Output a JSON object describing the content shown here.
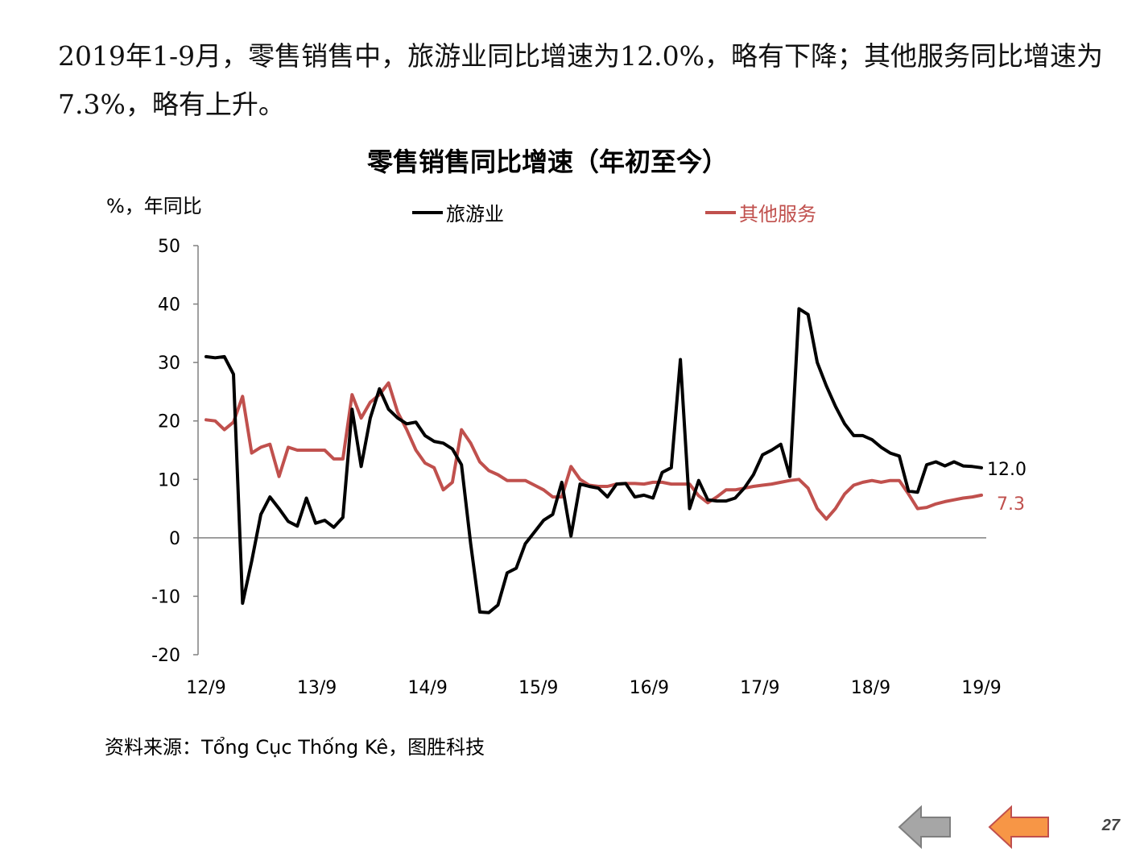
{
  "headline": "2019年1-9月，零售销售中，旅游业同比增速为12.0%，略有下降；其他服务同比增速为7.3%，略有上升。",
  "source": "资料来源：Tổng Cục Thống Kê，图胜科技",
  "page_number": "27",
  "nav": {
    "prev_icon": "gray-left-arrow-icon",
    "next_icon": "orange-left-arrow-icon"
  },
  "colors": {
    "tourism": "#000000",
    "other": "#c0504d",
    "axis": "#808080",
    "prev": "#a6a6a6",
    "next": "#f79646"
  },
  "chart_data": {
    "type": "line",
    "title": "零售销售同比增速（年初至今）",
    "ylabel": "%，年同比",
    "ylim": [
      -20,
      50
    ],
    "yticks": [
      50,
      40,
      30,
      20,
      10,
      0,
      -10,
      -20
    ],
    "xticks": [
      "12/9",
      "13/9",
      "14/9",
      "15/9",
      "16/9",
      "17/9",
      "18/9",
      "19/9"
    ],
    "x_start": "12/9",
    "x_end": "19/9",
    "legend_position": "top",
    "series": [
      {
        "name": "旅游业",
        "end_label": "12.0",
        "values": [
          31,
          30.8,
          31,
          28,
          -11.2,
          -4,
          4,
          7,
          5,
          2.8,
          2,
          6.8,
          2.5,
          3,
          1.8,
          3.5,
          22,
          12.2,
          20.5,
          25.5,
          22,
          20.5,
          19.5,
          19.8,
          17.5,
          16.5,
          16.2,
          15.2,
          12.5,
          -1,
          -12.7,
          -12.8,
          -11.5,
          -6,
          -5.2,
          -1,
          1,
          3,
          4,
          9.5,
          0.3,
          9.2,
          8.8,
          8.5,
          7,
          9.2,
          9.3,
          7,
          7.3,
          6.8,
          11.2,
          12,
          30.5,
          5,
          9.8,
          6.5,
          6.3,
          6.3,
          6.8,
          8.5,
          10.8,
          14.2,
          15,
          16,
          10.5,
          39.2,
          38.2,
          30,
          26,
          22.5,
          19.5,
          17.5,
          17.5,
          16.8,
          15.5,
          14.5,
          14,
          8,
          7.8,
          12.5,
          13,
          12.3,
          13,
          12.3,
          12.2,
          12
        ]
      },
      {
        "name": "其他服务",
        "end_label": "7.3",
        "values": [
          20.2,
          20,
          18.5,
          19.8,
          24.2,
          14.5,
          15.5,
          16,
          10.5,
          15.5,
          15,
          15,
          15,
          15,
          13.5,
          13.5,
          24.5,
          20.5,
          23.2,
          24.5,
          26.5,
          21.5,
          18.5,
          15,
          12.8,
          12,
          8.2,
          9.5,
          18.5,
          16.2,
          13,
          11.5,
          10.8,
          9.8,
          9.8,
          9.8,
          9,
          8.2,
          7,
          7,
          12.2,
          10,
          9,
          8.8,
          8.8,
          9.2,
          9.3,
          9.3,
          9.2,
          9.5,
          9.5,
          9.2,
          9.2,
          9.2,
          7.2,
          6,
          7,
          8.2,
          8.2,
          8.5,
          8.8,
          9,
          9.2,
          9.5,
          9.8,
          10,
          8.5,
          5,
          3.2,
          5,
          7.5,
          9,
          9.5,
          9.8,
          9.5,
          9.8,
          9.8,
          7.5,
          5,
          5.2,
          5.8,
          6.2,
          6.5,
          6.8,
          7,
          7.3
        ]
      }
    ]
  }
}
